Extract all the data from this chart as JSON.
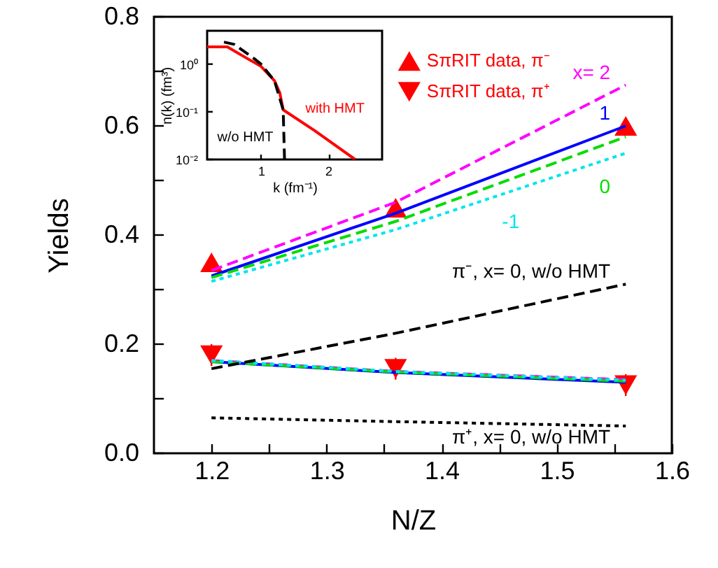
{
  "chart_data": [
    {
      "type": "line",
      "xlabel": "N/Z",
      "ylabel": "Yields",
      "xlim": [
        1.15,
        1.6
      ],
      "ylim": [
        0,
        0.8
      ],
      "xticks": [
        1.2,
        {
          "value": 1.25,
          "label": null
        },
        1.3,
        {
          "value": 1.35,
          "label": null
        },
        1.4,
        {
          "value": 1.45,
          "label": null
        },
        1.5,
        {
          "value": 1.55,
          "label": null
        },
        1.6
      ],
      "yticks": [
        {
          "value": 0,
          "label": "0.0"
        },
        {
          "value": 0.1,
          "label": null
        },
        0.2,
        {
          "value": 0.3,
          "label": null
        },
        0.4,
        {
          "value": 0.5,
          "label": null
        },
        0.6,
        {
          "value": 0.7,
          "label": null
        },
        0.8
      ],
      "legend": "top right",
      "grid": false,
      "series": [
        {
          "type": "scatter",
          "name": "SπRIT data, π⁻",
          "color": "#ff0000",
          "marker": "triangle",
          "x": [
            1.2,
            1.36,
            1.56
          ],
          "values": [
            0.35,
            0.45,
            0.6
          ]
        },
        {
          "type": "scatter",
          "name": "SπRIT data, π⁺",
          "color": "#ff0000",
          "marker": "triangle-down",
          "x": [
            1.2,
            1.36,
            1.56
          ],
          "values": [
            0.18,
            0.155,
            0.125
          ],
          "errors": [
            0.02,
            0.02,
            0.02
          ]
        },
        {
          "name": "x= 2",
          "color": "#ff00ff",
          "line_style": "dashed",
          "x": [
            1.2,
            1.36,
            1.56
          ],
          "values": [
            0.335,
            0.46,
            0.675
          ]
        },
        {
          "name": "1",
          "color": "#0000ff",
          "line_style": "solid",
          "x": [
            1.2,
            1.36,
            1.56
          ],
          "values": [
            0.325,
            0.44,
            0.6
          ]
        },
        {
          "name": "0",
          "color": "#00dd00",
          "line_style": "dashed",
          "x": [
            1.2,
            1.36,
            1.56
          ],
          "values": [
            0.322,
            0.425,
            0.58
          ]
        },
        {
          "name": "-1",
          "color": "#00e5ee",
          "line_style": "dotted",
          "x": [
            1.2,
            1.36,
            1.56
          ],
          "values": [
            0.315,
            0.41,
            0.55
          ]
        },
        {
          "color": "#ff00ff",
          "line_style": "dashed",
          "x": [
            1.2,
            1.36,
            1.56
          ],
          "values": [
            0.17,
            0.15,
            0.135
          ]
        },
        {
          "color": "#0000ff",
          "line_style": "solid",
          "x": [
            1.2,
            1.36,
            1.56
          ],
          "values": [
            0.168,
            0.148,
            0.13
          ]
        },
        {
          "color": "#00dd00",
          "line_style": "dashed",
          "x": [
            1.2,
            1.36,
            1.56
          ],
          "values": [
            0.168,
            0.149,
            0.132
          ]
        },
        {
          "color": "#00e5ee",
          "line_style": "dotted",
          "x": [
            1.2,
            1.36,
            1.56
          ],
          "values": [
            0.17,
            0.15,
            0.134
          ]
        },
        {
          "name": "π⁻, x= 0, w/o HMT",
          "color": "#000000",
          "line_style": "dashed",
          "x": [
            1.2,
            1.36,
            1.56
          ],
          "values": [
            0.155,
            0.22,
            0.31
          ]
        },
        {
          "name": "π⁺, x= 0, w/o HMT",
          "color": "#000000",
          "line_style": "dotted",
          "x": [
            1.2,
            1.36,
            1.56
          ],
          "values": [
            0.065,
            0.058,
            0.05
          ]
        }
      ]
    },
    {
      "type": "line",
      "xlabel": "k (fm⁻¹)",
      "ylabel": "n(k) (fm³)",
      "log": "y",
      "xlim": [
        0.2,
        2.8
      ],
      "ylim": [
        0.01,
        5
      ],
      "xticks": [
        1,
        2
      ],
      "yticks": [
        {
          "value": 0.01,
          "label": "10⁻²"
        },
        {
          "value": 0.1,
          "label": "10⁻¹"
        },
        {
          "value": 1,
          "label": "10⁰"
        }
      ],
      "series": [
        {
          "name": "with HMT",
          "color": "#ff0000",
          "line_style": "solid",
          "x": [
            0.2,
            0.5,
            0.8,
            1.0,
            1.2,
            1.28,
            1.33,
            1.8,
            2.4
          ],
          "values": [
            2.3,
            2.3,
            1.3,
            0.9,
            0.45,
            0.25,
            0.11,
            0.04,
            0.01
          ]
        },
        {
          "name": "w/o HMT",
          "color": "#000000",
          "line_style": "dashed",
          "x": [
            0.45,
            0.6,
            0.9,
            1.0,
            1.2,
            1.33,
            1.35
          ],
          "values": [
            2.9,
            2.6,
            1.3,
            1.0,
            0.45,
            0.11,
            0.01
          ]
        }
      ]
    }
  ]
}
